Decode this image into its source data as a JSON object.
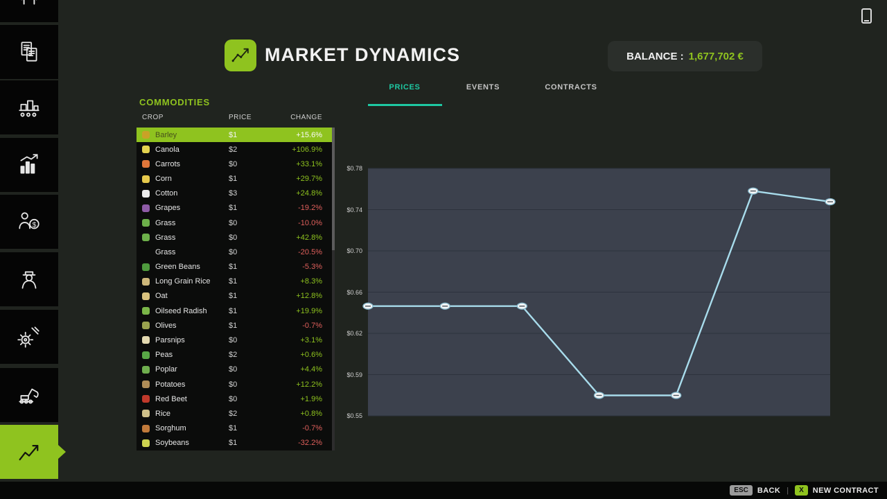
{
  "colors": {
    "accent": "#8fc31f",
    "tab_active": "#1ec8a2",
    "positive": "#8fc31f",
    "negative": "#e0605c",
    "chart_line": "#a8dcec",
    "chart_bg": "#3c414d",
    "chart_grid": "#2d323d"
  },
  "header": {
    "title": "MARKET DYNAMICS",
    "balance_label": "BALANCE :",
    "balance_value": "1,677,702 €"
  },
  "tabs": [
    {
      "label": "PRICES",
      "active": true
    },
    {
      "label": "EVENTS",
      "active": false
    },
    {
      "label": "CONTRACTS",
      "active": false
    }
  ],
  "commodities": {
    "section_title": "COMMODITIES",
    "columns": [
      "CROP",
      "PRICE",
      "CHANGE"
    ],
    "rows": [
      {
        "name": "Barley",
        "price": "$1",
        "change": "+15.6%",
        "dir": "up",
        "selected": true,
        "icon": "#c9a227"
      },
      {
        "name": "Canola",
        "price": "$2",
        "change": "+106.9%",
        "dir": "up",
        "selected": false,
        "icon": "#e3d34f"
      },
      {
        "name": "Carrots",
        "price": "$0",
        "change": "+33.1%",
        "dir": "up",
        "selected": false,
        "icon": "#e0763a"
      },
      {
        "name": "Corn",
        "price": "$1",
        "change": "+29.7%",
        "dir": "up",
        "selected": false,
        "icon": "#e6c94c"
      },
      {
        "name": "Cotton",
        "price": "$3",
        "change": "+24.8%",
        "dir": "up",
        "selected": false,
        "icon": "#ececec"
      },
      {
        "name": "Grapes",
        "price": "$1",
        "change": "-19.2%",
        "dir": "down",
        "selected": false,
        "icon": "#8e5ba6"
      },
      {
        "name": "Grass",
        "price": "$0",
        "change": "-10.0%",
        "dir": "down",
        "selected": false,
        "icon": "#6db04a"
      },
      {
        "name": "Grass",
        "price": "$0",
        "change": "+42.8%",
        "dir": "up",
        "selected": false,
        "icon": "#6db04a"
      },
      {
        "name": "Grass",
        "price": "$0",
        "change": "-20.5%",
        "dir": "down",
        "selected": false,
        "icon": null
      },
      {
        "name": "Green Beans",
        "price": "$1",
        "change": "-5.3%",
        "dir": "down",
        "selected": false,
        "icon": "#4e9a3d"
      },
      {
        "name": "Long Grain Rice",
        "price": "$1",
        "change": "+8.3%",
        "dir": "up",
        "selected": false,
        "icon": "#cdb77a"
      },
      {
        "name": "Oat",
        "price": "$1",
        "change": "+12.8%",
        "dir": "up",
        "selected": false,
        "icon": "#d9c27e"
      },
      {
        "name": "Oilseed Radish",
        "price": "$1",
        "change": "+19.9%",
        "dir": "up",
        "selected": false,
        "icon": "#7ab648"
      },
      {
        "name": "Olives",
        "price": "$1",
        "change": "-0.7%",
        "dir": "down",
        "selected": false,
        "icon": "#9aa34f"
      },
      {
        "name": "Parsnips",
        "price": "$0",
        "change": "+3.1%",
        "dir": "up",
        "selected": false,
        "icon": "#e3d9b0"
      },
      {
        "name": "Peas",
        "price": "$2",
        "change": "+0.6%",
        "dir": "up",
        "selected": false,
        "icon": "#58a846"
      },
      {
        "name": "Poplar",
        "price": "$0",
        "change": "+4.4%",
        "dir": "up",
        "selected": false,
        "icon": "#6fae4e"
      },
      {
        "name": "Potatoes",
        "price": "$0",
        "change": "+12.2%",
        "dir": "up",
        "selected": false,
        "icon": "#b08d57"
      },
      {
        "name": "Red Beet",
        "price": "$0",
        "change": "+1.9%",
        "dir": "up",
        "selected": false,
        "icon": "#c0392b"
      },
      {
        "name": "Rice",
        "price": "$2",
        "change": "+0.8%",
        "dir": "up",
        "selected": false,
        "icon": "#cfc08a"
      },
      {
        "name": "Sorghum",
        "price": "$1",
        "change": "-0.7%",
        "dir": "down",
        "selected": false,
        "icon": "#c17a3b"
      },
      {
        "name": "Soybeans",
        "price": "$1",
        "change": "-32.2%",
        "dir": "down",
        "selected": false,
        "icon": "#cdd24f"
      }
    ]
  },
  "chart_data": {
    "type": "line",
    "title": "",
    "x_labels": [],
    "y_ticks": [
      "$0.78",
      "$0.74",
      "$0.70",
      "$0.66",
      "$0.62",
      "$0.59",
      "$0.55"
    ],
    "ylim": [
      0.55,
      0.78
    ],
    "grid": true,
    "legend": "none",
    "series": [
      {
        "values": [
          0.652,
          0.652,
          0.652,
          0.569,
          0.569,
          0.759,
          0.749
        ]
      }
    ]
  },
  "sidebar": {
    "items": [
      {
        "name": "animals"
      },
      {
        "name": "documents"
      },
      {
        "name": "production"
      },
      {
        "name": "statistics"
      },
      {
        "name": "vehicle-dealer"
      },
      {
        "name": "workers"
      },
      {
        "name": "settings"
      },
      {
        "name": "landscaping"
      },
      {
        "name": "market-dynamics",
        "selected": true
      }
    ]
  },
  "footer": {
    "esc_key": "ESC",
    "back_label": "BACK",
    "separator": "|",
    "x_key": "X",
    "new_contract_label": "NEW CONTRACT"
  }
}
